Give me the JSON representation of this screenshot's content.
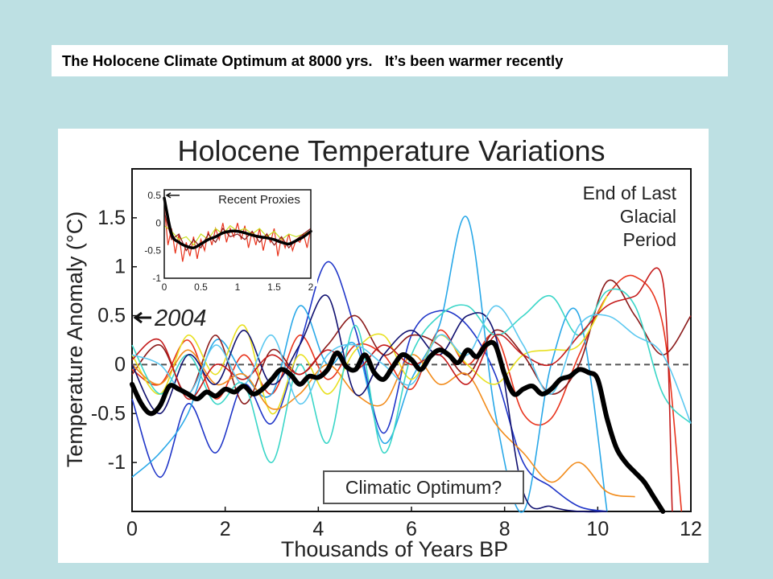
{
  "banner": {
    "text": "The Holocene Climate Optimum at 8000 yrs.   It’s been warmer recently"
  },
  "colors": {
    "page_background": "#bde0e3",
    "mean_line": "#000000",
    "zero_line": "#555555",
    "series_palette": [
      "#e8331c",
      "#1f35c8",
      "#29a8e8",
      "#8b1a1a",
      "#e8e020",
      "#f28c1c",
      "#3ad6c8",
      "#101070",
      "#c41a1a",
      "#5cc8f0"
    ]
  },
  "chart_data": [
    {
      "type": "line",
      "title": "Holocene Temperature Variations",
      "xlabel": "Thousands of Years BP",
      "ylabel": "Temperature Anomaly (°C)",
      "xlim": [
        0,
        12
      ],
      "ylim": [
        -1.5,
        2.0
      ],
      "x_ticks": [
        "0",
        "2",
        "4",
        "6",
        "8",
        "10",
        "12"
      ],
      "y_ticks": [
        "-1",
        "-0.5",
        "0",
        "0.5",
        "1",
        "1.5"
      ],
      "grid": false,
      "reference_line": {
        "y": 0,
        "style": "dashed"
      },
      "annotations": {
        "marker_2004": {
          "label": "2004",
          "x": 0,
          "y": 0.48
        },
        "glacial": [
          "End of Last",
          "Glacial",
          "Period"
        ],
        "optimum": "Climatic Optimum?"
      },
      "mean_series": {
        "name": "",
        "x": [
          0.0,
          0.2,
          0.4,
          0.6,
          0.8,
          1.0,
          1.2,
          1.4,
          1.6,
          1.8,
          2.0,
          2.2,
          2.4,
          2.6,
          2.8,
          3.0,
          3.2,
          3.4,
          3.6,
          3.8,
          4.0,
          4.2,
          4.4,
          4.6,
          4.8,
          5.0,
          5.2,
          5.4,
          5.6,
          5.8,
          6.0,
          6.2,
          6.4,
          6.6,
          6.8,
          7.0,
          7.2,
          7.4,
          7.6,
          7.8,
          8.0,
          8.2,
          8.4,
          8.6,
          8.8,
          9.0,
          9.2,
          9.4,
          9.6,
          9.8,
          10.0,
          10.2,
          10.4,
          10.6,
          10.8,
          11.0,
          11.2,
          11.4
        ],
        "values": [
          -0.2,
          -0.4,
          -0.5,
          -0.42,
          -0.22,
          -0.25,
          -0.3,
          -0.35,
          -0.28,
          -0.32,
          -0.25,
          -0.28,
          -0.22,
          -0.3,
          -0.25,
          -0.15,
          -0.05,
          -0.1,
          -0.2,
          -0.12,
          -0.13,
          -0.05,
          0.12,
          -0.02,
          -0.05,
          0.1,
          -0.08,
          -0.15,
          -0.02,
          0.1,
          0.05,
          -0.05,
          0.08,
          0.15,
          0.1,
          0.02,
          0.15,
          0.08,
          0.2,
          0.2,
          -0.1,
          -0.3,
          -0.25,
          -0.22,
          -0.3,
          -0.25,
          -0.15,
          -0.12,
          -0.05,
          -0.08,
          -0.15,
          -0.55,
          -0.85,
          -1.0,
          -1.1,
          -1.2,
          -1.35,
          -1.5
        ]
      },
      "series": [
        {
          "name": "",
          "color": "#e8331c",
          "x": [
            0,
            0.6,
            1.2,
            1.8,
            2.4,
            3.0,
            3.6,
            4.2,
            4.8,
            5.4,
            6.0,
            6.6,
            7.2,
            7.8,
            8.4,
            9.0,
            9.6,
            10.2,
            10.8,
            11.4,
            11.8
          ],
          "values": [
            -0.05,
            -0.2,
            0.25,
            -0.35,
            0.1,
            -0.3,
            0.3,
            -0.15,
            0.2,
            0.1,
            -0.25,
            0.35,
            0.0,
            0.3,
            -0.5,
            -0.55,
            0.1,
            0.7,
            0.9,
            0.4,
            -1.5
          ]
        },
        {
          "name": "",
          "color": "#1f35c8",
          "x": [
            0,
            0.6,
            1.2,
            1.8,
            2.4,
            3.0,
            3.6,
            4.2,
            4.8,
            5.4,
            6.0,
            6.6,
            7.2,
            7.8,
            8.4,
            9.0,
            9.6,
            10.2
          ],
          "values": [
            -0.35,
            -1.15,
            -0.4,
            -0.9,
            -0.2,
            -0.6,
            0.2,
            1.05,
            0.35,
            -0.7,
            0.3,
            0.55,
            0.4,
            -0.1,
            -1.0,
            -1.25,
            -1.45,
            -1.5
          ]
        },
        {
          "name": "",
          "color": "#29a8e8",
          "x": [
            0,
            0.6,
            1.2,
            1.8,
            2.4,
            3.0,
            3.6,
            4.2,
            4.8,
            5.4,
            6.0,
            6.6,
            7.2,
            7.8,
            8.4,
            9.0,
            9.6,
            10.2
          ],
          "values": [
            -1.15,
            -0.9,
            -0.5,
            0.25,
            -0.1,
            -0.3,
            0.6,
            0.0,
            0.2,
            -0.8,
            -0.15,
            0.4,
            1.5,
            -0.5,
            -1.5,
            0.0,
            0.5,
            -1.5
          ]
        },
        {
          "name": "",
          "color": "#8b1a1a",
          "x": [
            0,
            0.6,
            1.2,
            1.8,
            2.4,
            3.0,
            3.6,
            4.2,
            4.8,
            5.4,
            6.0,
            6.6,
            7.2,
            7.8,
            8.4,
            9.0,
            9.6,
            10.2,
            10.8,
            11.4,
            12.0
          ],
          "values": [
            -0.1,
            0.2,
            -0.3,
            0.3,
            -0.4,
            0.15,
            -0.1,
            0.2,
            0.5,
            0.1,
            0.3,
            0.2,
            -0.1,
            0.35,
            0.1,
            -0.3,
            0.0,
            0.85,
            0.5,
            0.1,
            0.5
          ]
        },
        {
          "name": "",
          "color": "#e8e020",
          "x": [
            0,
            0.6,
            1.2,
            1.8,
            2.4,
            3.0,
            3.6,
            4.2,
            4.8,
            5.4,
            6.0,
            6.6,
            7.2,
            7.8,
            8.4,
            9.0,
            9.6,
            10.2
          ],
          "values": [
            0.1,
            -0.3,
            0.3,
            -0.1,
            0.4,
            -0.5,
            0.1,
            -0.3,
            0.15,
            0.3,
            -0.15,
            0.3,
            0.0,
            -0.2,
            0.1,
            0.15,
            0.2,
            0.7
          ]
        },
        {
          "name": "",
          "color": "#f28c1c",
          "x": [
            0,
            0.6,
            1.2,
            1.8,
            2.4,
            3.0,
            3.6,
            4.2,
            4.8,
            5.4,
            6.0,
            6.6,
            7.2,
            7.8,
            8.4,
            9.0,
            9.6,
            10.2,
            10.8
          ],
          "values": [
            0.0,
            -0.2,
            0.15,
            -0.2,
            -0.1,
            -0.45,
            -0.3,
            0.0,
            -0.3,
            -0.4,
            0.1,
            -0.2,
            -0.1,
            -0.6,
            -0.9,
            -1.2,
            -1.0,
            -1.3,
            -1.35
          ]
        },
        {
          "name": "",
          "color": "#3ad6c8",
          "x": [
            0,
            0.6,
            1.2,
            1.8,
            2.4,
            3.0,
            3.6,
            4.2,
            4.8,
            5.4,
            6.0,
            6.6,
            7.2,
            7.8,
            8.4,
            9.0,
            9.6,
            10.2,
            10.8,
            11.4,
            12.0
          ],
          "values": [
            0.2,
            -0.3,
            0.1,
            -0.4,
            -0.2,
            -1.0,
            0.0,
            -0.8,
            0.4,
            -0.9,
            0.1,
            0.5,
            0.6,
            0.3,
            0.5,
            0.7,
            0.3,
            0.75,
            0.6,
            -0.3,
            -0.6
          ]
        },
        {
          "name": "",
          "color": "#101070",
          "x": [
            0,
            0.6,
            1.2,
            1.8,
            2.4,
            3.0,
            3.6,
            4.2,
            4.8,
            5.4,
            6.0,
            6.6,
            7.2,
            7.8,
            8.4,
            9.0,
            9.6,
            10.2
          ],
          "values": [
            0.0,
            -0.5,
            0.1,
            -0.2,
            0.35,
            -0.2,
            0.2,
            0.7,
            -0.3,
            0.1,
            0.35,
            0.1,
            0.5,
            0.3,
            -1.3,
            -1.45,
            -1.5,
            -1.5
          ]
        },
        {
          "name": "",
          "color": "#c41a1a",
          "x": [
            0,
            0.6,
            1.2,
            1.8,
            2.4,
            3.0,
            3.6,
            4.2,
            4.8,
            5.4,
            6.0,
            6.6,
            7.2,
            7.8,
            8.4,
            9.0,
            9.6,
            10.2,
            10.8,
            11.4,
            11.6
          ],
          "values": [
            0.05,
            0.25,
            -0.35,
            0.0,
            -0.15,
            0.1,
            -0.1,
            0.15,
            -0.05,
            0.2,
            0.0,
            0.1,
            -0.2,
            0.3,
            0.1,
            0.0,
            0.3,
            0.6,
            0.7,
            0.85,
            -1.5
          ]
        },
        {
          "name": "",
          "color": "#5cc8f0",
          "x": [
            0,
            0.6,
            1.2,
            1.8,
            2.4,
            3.0,
            3.6,
            4.2,
            4.8,
            5.4,
            6.0,
            6.6,
            7.2,
            7.8,
            8.4,
            9.0,
            9.6,
            10.2,
            10.8,
            11.4,
            12.0
          ],
          "values": [
            0.1,
            0.0,
            -0.3,
            0.2,
            -0.2,
            0.3,
            -0.4,
            0.1,
            0.2,
            0.0,
            -0.2,
            0.3,
            0.1,
            0.6,
            0.2,
            -0.3,
            0.4,
            0.5,
            0.3,
            0.1,
            -0.6
          ]
        }
      ]
    },
    {
      "type": "line",
      "title": "Recent Proxies",
      "xlabel": "",
      "ylabel": "",
      "xlim": [
        0,
        2
      ],
      "ylim": [
        -1,
        0.6
      ],
      "x_ticks": [
        "0",
        "0.5",
        "1",
        "1.5",
        "2"
      ],
      "y_ticks": [
        "-1",
        "-0.5",
        "0",
        "0.5"
      ],
      "grid": false,
      "annotations": {
        "arrow_at": {
          "x": 0,
          "y": 0.5
        }
      },
      "mean_series": {
        "name": "",
        "x": [
          0,
          0.1,
          0.2,
          0.3,
          0.4,
          0.5,
          0.6,
          0.7,
          0.8,
          0.9,
          1.0,
          1.1,
          1.2,
          1.3,
          1.4,
          1.5,
          1.6,
          1.7,
          1.8,
          1.9,
          2.0
        ],
        "values": [
          0.45,
          -0.2,
          -0.35,
          -0.42,
          -0.45,
          -0.38,
          -0.3,
          -0.25,
          -0.18,
          -0.15,
          -0.15,
          -0.18,
          -0.22,
          -0.25,
          -0.27,
          -0.3,
          -0.35,
          -0.38,
          -0.32,
          -0.25,
          -0.15
        ]
      },
      "series": [
        {
          "name": "",
          "color": "#e8331c",
          "x": [
            0,
            0.05,
            0.1,
            0.15,
            0.2,
            0.25,
            0.3,
            0.35,
            0.4,
            0.45,
            0.5,
            0.55,
            0.6,
            0.65,
            0.7,
            0.75,
            0.8,
            0.85,
            0.9,
            0.95,
            1.0,
            1.05,
            1.1,
            1.15,
            1.2,
            1.25,
            1.3,
            1.35,
            1.4,
            1.45,
            1.5,
            1.55,
            1.6,
            1.65,
            1.7,
            1.75,
            1.8,
            1.85,
            1.9,
            1.95,
            2.0
          ],
          "values": [
            0.3,
            -0.4,
            -0.1,
            -0.55,
            -0.2,
            -0.7,
            -0.35,
            -0.6,
            -0.25,
            -0.65,
            -0.3,
            -0.5,
            -0.15,
            -0.4,
            -0.1,
            -0.3,
            0.0,
            -0.35,
            -0.1,
            -0.25,
            0.0,
            -0.3,
            -0.05,
            -0.45,
            -0.15,
            -0.4,
            -0.1,
            -0.5,
            -0.2,
            -0.35,
            -0.1,
            -0.6,
            -0.25,
            -0.45,
            -0.2,
            -0.5,
            -0.3,
            -0.35,
            -0.2,
            -0.45,
            -0.1
          ]
        },
        {
          "name": "",
          "color": "#c8e020",
          "x": [
            0,
            0.1,
            0.2,
            0.3,
            0.4,
            0.5,
            0.6,
            0.7,
            0.8,
            0.9,
            1.0,
            1.1,
            1.2,
            1.3,
            1.4,
            1.5,
            1.6,
            1.7,
            1.8,
            1.9,
            2.0
          ],
          "values": [
            -0.05,
            -0.15,
            -0.3,
            -0.25,
            -0.4,
            -0.2,
            -0.3,
            -0.1,
            -0.2,
            -0.05,
            -0.15,
            -0.1,
            -0.2,
            -0.1,
            -0.25,
            -0.15,
            -0.3,
            -0.2,
            -0.25,
            -0.2,
            -0.15
          ]
        },
        {
          "name": "",
          "color": "#8b1a1a",
          "x": [
            0,
            0.1,
            0.2,
            0.3,
            0.4,
            0.5,
            0.6,
            0.7,
            0.8,
            0.9,
            1.0,
            1.1,
            1.2,
            1.3,
            1.4,
            1.5,
            1.6,
            1.7,
            1.8,
            1.9,
            2.0
          ],
          "values": [
            0.2,
            -0.3,
            -0.2,
            -0.5,
            -0.3,
            -0.45,
            -0.2,
            -0.35,
            -0.1,
            -0.25,
            -0.2,
            -0.3,
            -0.15,
            -0.35,
            -0.2,
            -0.4,
            -0.25,
            -0.45,
            -0.3,
            -0.2,
            -0.1
          ]
        }
      ]
    }
  ]
}
